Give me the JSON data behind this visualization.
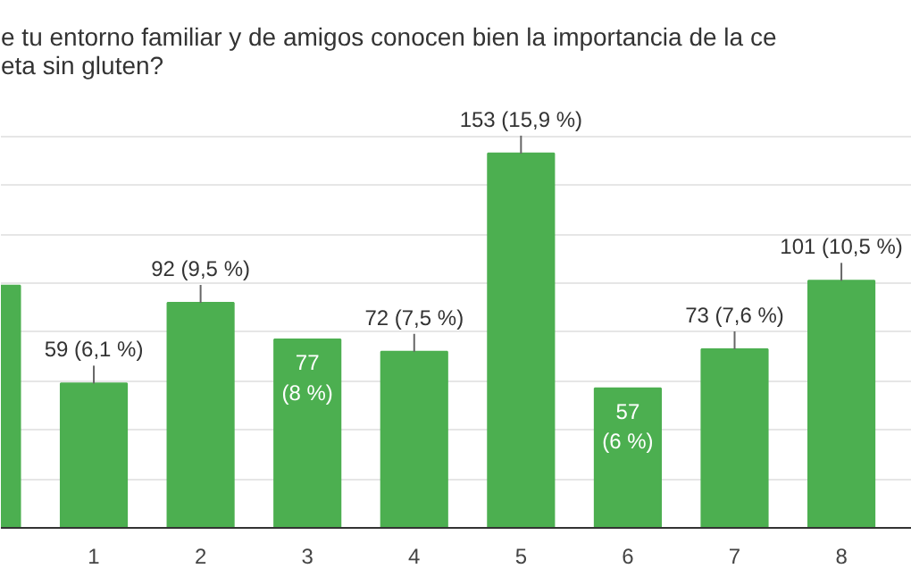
{
  "chart_data": {
    "type": "bar",
    "title": "e tu entorno familiar y de amigos conocen bien la importancia de la ce\neta sin gluten?",
    "categories": [
      null,
      "1",
      "2",
      "3",
      "4",
      "5",
      "6",
      "7",
      "8"
    ],
    "values": [
      99,
      59,
      92,
      77,
      72,
      153,
      57,
      73,
      101
    ],
    "value_labels": [
      null,
      "59 (6,1 %)",
      "92 (9,5 %)",
      "77 (8 %)",
      "72 (7,5 %)",
      "153 (15,9 %)",
      "57 (6 %)",
      "73 (7,6 %)",
      "101 (10,5 %)"
    ],
    "color": "#4caf50",
    "grid": "y"
  }
}
